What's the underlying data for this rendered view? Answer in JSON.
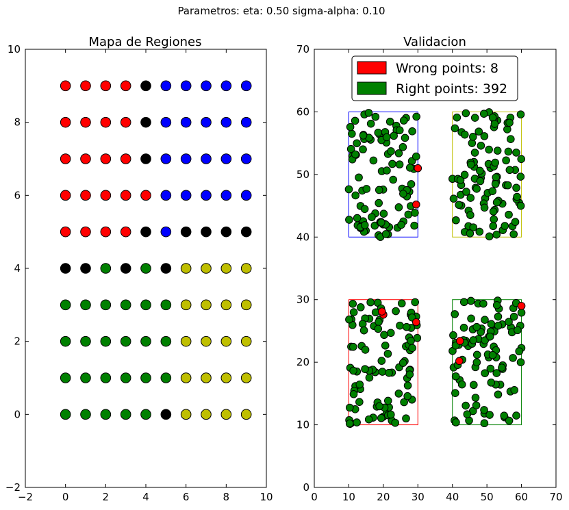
{
  "figure": {
    "suptitle": "Parametros: eta: 0.50 sigma-alpha: 0.10"
  },
  "chart_data": [
    {
      "type": "scatter",
      "title": "Mapa de Regiones",
      "xlabel": "",
      "ylabel": "",
      "xlim": [
        -2,
        10
      ],
      "ylim": [
        -2,
        10
      ],
      "xticks": [
        -2,
        0,
        2,
        4,
        6,
        8,
        10
      ],
      "yticks": [
        -2,
        0,
        2,
        4,
        6,
        8,
        10
      ],
      "grid": false,
      "palette": {
        "r": "#ff0000",
        "b": "#0000ff",
        "k": "#000000",
        "g": "#008000",
        "y": "#bfbf00"
      },
      "x": [
        0,
        1,
        2,
        3,
        4,
        5,
        6,
        7,
        8,
        9
      ],
      "y": [
        9,
        8,
        7,
        6,
        5,
        4,
        3,
        2,
        1,
        0
      ],
      "grid_colors": [
        "rrrrkbbbbb",
        "rrrrkbbbbb",
        "rrrrkbbbbb",
        "rrrrrbbbbb",
        "rrrrkbkkkk",
        "kkgkgkyyyy",
        "ggggggyyyy",
        "ggggggyyyy",
        "ggggggyyyy",
        "gggggkyyyy"
      ]
    },
    {
      "type": "scatter",
      "title": "Validacion",
      "xlabel": "",
      "ylabel": "",
      "xlim": [
        0,
        70
      ],
      "ylim": [
        0,
        70
      ],
      "xticks": [
        0,
        10,
        20,
        30,
        40,
        50,
        60,
        70
      ],
      "yticks": [
        0,
        10,
        20,
        30,
        40,
        50,
        60,
        70
      ],
      "grid": false,
      "legend_position": "top-center",
      "legend": [
        {
          "label": "Wrong points: 8",
          "color": "#ff0000"
        },
        {
          "label": "Right points: 392",
          "color": "#008000"
        }
      ],
      "regions": [
        {
          "x0": 10,
          "x1": 30,
          "y0": 40,
          "y1": 60,
          "color": "#0000ff"
        },
        {
          "x0": 40,
          "x1": 60,
          "y0": 40,
          "y1": 60,
          "color": "#bfbf00"
        },
        {
          "x0": 10,
          "x1": 30,
          "y0": 10,
          "y1": 30,
          "color": "#ff0000"
        },
        {
          "x0": 40,
          "x1": 60,
          "y0": 10,
          "y1": 30,
          "color": "#008000"
        }
      ],
      "points_per_region": 100,
      "wrong_points": [
        {
          "x": 30,
          "y": 51
        },
        {
          "x": 29.5,
          "y": 45.2
        },
        {
          "x": 20,
          "y": 27.6
        },
        {
          "x": 19.6,
          "y": 28.1
        },
        {
          "x": 29.5,
          "y": 26.4
        },
        {
          "x": 60,
          "y": 29
        },
        {
          "x": 42.2,
          "y": 23.4
        },
        {
          "x": 42,
          "y": 20.2
        }
      ],
      "wrong_count": 8,
      "right_count": 392
    }
  ]
}
